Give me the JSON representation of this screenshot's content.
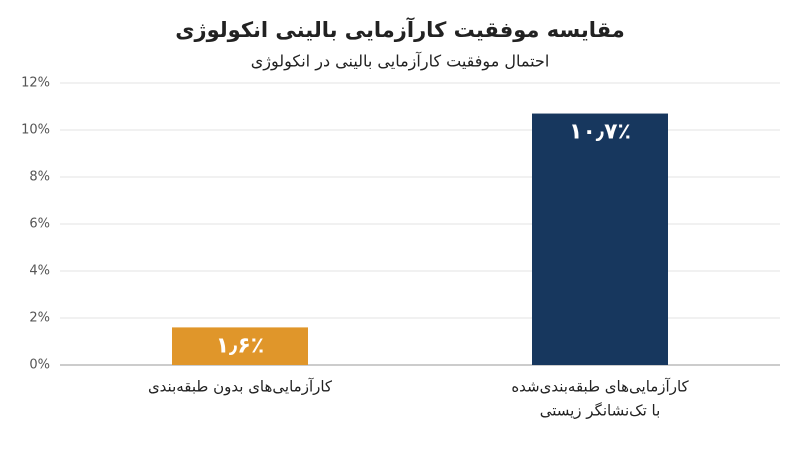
{
  "chart_data": {
    "type": "bar",
    "title": "مقایسه موفقیت کارآزمایی بالینی انکولوژی",
    "subtitle": "احتمال موفقیت کارآزمایی بالینی در انکولوژی",
    "categories": [
      [
        "کارآزمایی‌های بدون طبقه‌بندی"
      ],
      [
        "کارآزمایی‌های طبقه‌بندی‌شده",
        "با تک‌نشانگر زیستی"
      ]
    ],
    "values": [
      1.6,
      10.7
    ],
    "value_labels": [
      "۱٫۶٪",
      "۱۰٫۷٪"
    ],
    "colors": [
      "#e0962a",
      "#17375e"
    ],
    "ylim": [
      0,
      12
    ],
    "yticks": [
      {
        "value": 0,
        "label": "0%"
      },
      {
        "value": 2,
        "label": "2%"
      },
      {
        "value": 4,
        "label": "4%"
      },
      {
        "value": 6,
        "label": "6%"
      },
      {
        "value": 8,
        "label": "8%"
      },
      {
        "value": 10,
        "label": "10%"
      },
      {
        "value": 12,
        "label": "12%"
      }
    ],
    "grid": true
  }
}
